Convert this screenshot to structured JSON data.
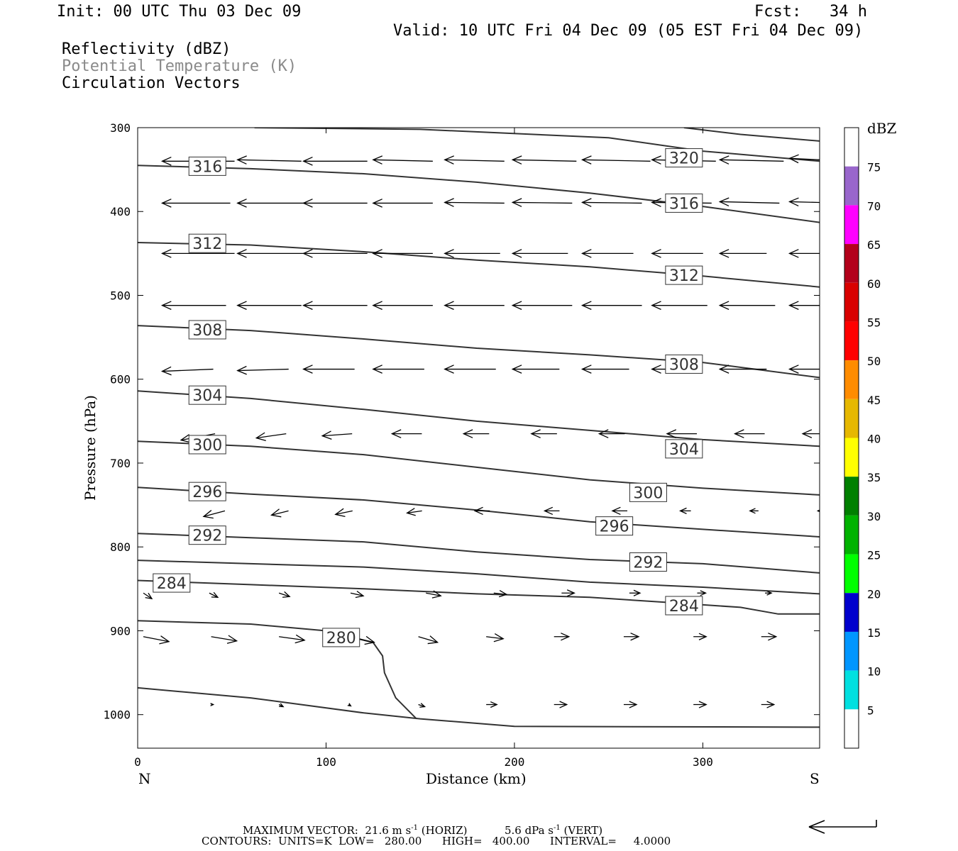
{
  "header": {
    "init": "Init: 00 UTC Thu 03 Dec 09",
    "fcst": "Fcst:   34 h",
    "valid": "Valid: 10 UTC Fri 04 Dec 09 (05 EST Fri 04 Dec 09)",
    "fields": [
      "Reflectivity (dBZ)",
      "Potential Temperature (K)",
      "Circulation Vectors"
    ]
  },
  "chart_data": {
    "type": "line",
    "xlabel": "Distance (km)",
    "ylabel": "Pressure (hPa)",
    "x_ticks": [
      0,
      100,
      200,
      300
    ],
    "y_ticks": [
      300,
      400,
      500,
      600,
      700,
      800,
      900,
      1000
    ],
    "xlim": [
      0,
      362
    ],
    "ylim": [
      300,
      1040
    ],
    "y_inverted": true,
    "left_end_label": "N",
    "right_end_label": "S",
    "contours": [
      {
        "level": 320,
        "labels": [
          [
            290,
            336
          ]
        ],
        "points": [
          [
            62,
            300
          ],
          [
            150,
            302
          ],
          [
            250,
            312
          ],
          [
            300,
            328
          ],
          [
            362,
            340
          ]
        ]
      },
      {
        "level": 320,
        "labels": [],
        "points": [
          [
            290,
            300
          ],
          [
            320,
            308
          ],
          [
            362,
            316
          ]
        ]
      },
      {
        "level": 316,
        "labels": [
          [
            37,
            346
          ],
          [
            290,
            390
          ]
        ],
        "points": [
          [
            0,
            345
          ],
          [
            60,
            349
          ],
          [
            120,
            355
          ],
          [
            180,
            365
          ],
          [
            240,
            378
          ],
          [
            300,
            394
          ],
          [
            362,
            413
          ]
        ]
      },
      {
        "level": 312,
        "labels": [
          [
            37,
            438
          ],
          [
            290,
            476
          ]
        ],
        "points": [
          [
            0,
            437
          ],
          [
            60,
            440
          ],
          [
            120,
            448
          ],
          [
            180,
            458
          ],
          [
            240,
            466
          ],
          [
            300,
            477
          ],
          [
            362,
            490
          ]
        ]
      },
      {
        "level": 308,
        "labels": [
          [
            37,
            541
          ],
          [
            290,
            582
          ]
        ],
        "points": [
          [
            0,
            536
          ],
          [
            60,
            542
          ],
          [
            120,
            552
          ],
          [
            180,
            563
          ],
          [
            240,
            571
          ],
          [
            300,
            580
          ],
          [
            362,
            598
          ]
        ]
      },
      {
        "level": 304,
        "labels": [
          [
            37,
            619
          ],
          [
            290,
            683
          ]
        ],
        "points": [
          [
            0,
            614
          ],
          [
            60,
            623
          ],
          [
            120,
            636
          ],
          [
            180,
            650
          ],
          [
            240,
            661
          ],
          [
            300,
            672
          ],
          [
            362,
            680
          ]
        ]
      },
      {
        "level": 300,
        "labels": [
          [
            37,
            678
          ],
          [
            271,
            735
          ]
        ],
        "points": [
          [
            0,
            674
          ],
          [
            60,
            680
          ],
          [
            120,
            690
          ],
          [
            180,
            705
          ],
          [
            240,
            720
          ],
          [
            300,
            730
          ],
          [
            362,
            738
          ]
        ]
      },
      {
        "level": 296,
        "labels": [
          [
            37,
            734
          ],
          [
            253,
            775
          ]
        ],
        "points": [
          [
            0,
            729
          ],
          [
            60,
            737
          ],
          [
            120,
            744
          ],
          [
            180,
            756
          ],
          [
            240,
            770
          ],
          [
            300,
            779
          ],
          [
            362,
            788
          ]
        ]
      },
      {
        "level": 292,
        "labels": [
          [
            37,
            786
          ],
          [
            271,
            818
          ]
        ],
        "points": [
          [
            0,
            784
          ],
          [
            60,
            789
          ],
          [
            120,
            794
          ],
          [
            180,
            806
          ],
          [
            240,
            815
          ],
          [
            300,
            820
          ],
          [
            362,
            831
          ]
        ]
      },
      {
        "level": 288,
        "labels": [],
        "points": [
          [
            0,
            816
          ],
          [
            60,
            820
          ],
          [
            120,
            824
          ],
          [
            180,
            832
          ],
          [
            240,
            842
          ],
          [
            300,
            848
          ],
          [
            362,
            856
          ]
        ]
      },
      {
        "level": 284,
        "labels": [
          [
            18,
            843
          ],
          [
            290,
            870
          ]
        ],
        "points": [
          [
            0,
            840
          ],
          [
            60,
            845
          ],
          [
            120,
            850
          ],
          [
            180,
            856
          ],
          [
            240,
            860
          ],
          [
            280,
            866
          ],
          [
            320,
            872
          ],
          [
            340,
            880
          ],
          [
            362,
            880
          ]
        ]
      },
      {
        "level": 280,
        "labels": [
          [
            108,
            908
          ]
        ],
        "points": [
          [
            0,
            888
          ],
          [
            60,
            892
          ],
          [
            100,
            900
          ],
          [
            125,
            914
          ],
          [
            130,
            930
          ],
          [
            131,
            950
          ],
          [
            137,
            980
          ],
          [
            148,
            1005
          ]
        ]
      },
      {
        "level": "ground",
        "labels": [],
        "points": [
          [
            0,
            968
          ],
          [
            60,
            980
          ],
          [
            120,
            998
          ],
          [
            150,
            1005
          ],
          [
            200,
            1014
          ],
          [
            362,
            1015
          ]
        ]
      }
    ],
    "vector_rows": [
      {
        "p": 340,
        "arrows": [
          [
            10,
            -34,
            0
          ],
          [
            50,
            -30,
            -2
          ],
          [
            85,
            -30,
            0
          ],
          [
            122,
            -28,
            -2
          ],
          [
            160,
            -28,
            -2
          ],
          [
            196,
            -30,
            -2
          ],
          [
            233,
            -32,
            -2
          ],
          [
            270,
            -30,
            -2
          ],
          [
            306,
            -30,
            -2
          ],
          [
            343,
            -28,
            -4
          ]
        ]
      },
      {
        "p": 390,
        "arrows": [
          [
            10,
            -32,
            0
          ],
          [
            50,
            -32,
            0
          ],
          [
            85,
            -30,
            0
          ],
          [
            122,
            -28,
            0
          ],
          [
            160,
            -28,
            -1
          ],
          [
            196,
            -28,
            -1
          ],
          [
            233,
            -28,
            -1
          ],
          [
            270,
            -28,
            -1
          ],
          [
            306,
            -28,
            -2
          ],
          [
            343,
            -26,
            -2
          ]
        ]
      },
      {
        "p": 450,
        "arrows": [
          [
            10,
            -34,
            0
          ],
          [
            50,
            -32,
            0
          ],
          [
            85,
            -30,
            0
          ],
          [
            122,
            -28,
            0
          ],
          [
            160,
            -26,
            0
          ],
          [
            196,
            -26,
            0
          ],
          [
            233,
            -24,
            0
          ],
          [
            270,
            -24,
            0
          ],
          [
            306,
            -22,
            0
          ],
          [
            343,
            -22,
            0
          ]
        ]
      },
      {
        "p": 512,
        "arrows": [
          [
            10,
            -30,
            0
          ],
          [
            50,
            -30,
            0
          ],
          [
            85,
            -30,
            0
          ],
          [
            122,
            -28,
            0
          ],
          [
            160,
            -28,
            0
          ],
          [
            196,
            -28,
            0
          ],
          [
            233,
            -28,
            0
          ],
          [
            270,
            -26,
            0
          ],
          [
            306,
            -26,
            0
          ],
          [
            343,
            -24,
            0
          ]
        ]
      },
      {
        "p": 588,
        "arrows": [
          [
            10,
            -24,
            3
          ],
          [
            50,
            -24,
            2
          ],
          [
            85,
            -24,
            0
          ],
          [
            122,
            -24,
            0
          ],
          [
            160,
            -24,
            0
          ],
          [
            196,
            -22,
            0
          ],
          [
            233,
            -22,
            0
          ],
          [
            270,
            -22,
            0
          ],
          [
            306,
            -22,
            0
          ],
          [
            343,
            -22,
            0
          ]
        ]
      },
      {
        "p": 665,
        "arrows": [
          [
            20,
            -16,
            9
          ],
          [
            60,
            -14,
            6
          ],
          [
            95,
            -14,
            3
          ],
          [
            132,
            -14,
            0
          ],
          [
            170,
            -12,
            0
          ],
          [
            206,
            -12,
            0
          ],
          [
            242,
            -12,
            0
          ],
          [
            278,
            -14,
            0
          ],
          [
            314,
            -14,
            0
          ],
          [
            350,
            -14,
            0
          ]
        ]
      },
      {
        "p": 757,
        "arrows": [
          [
            32,
            -10,
            8
          ],
          [
            68,
            -8,
            6
          ],
          [
            102,
            -8,
            5
          ],
          [
            140,
            -7,
            3
          ],
          [
            176,
            -7,
            0
          ],
          [
            213,
            -7,
            0
          ],
          [
            249,
            -7,
            0
          ],
          [
            285,
            -5,
            0
          ],
          [
            322,
            -4,
            0
          ],
          [
            358,
            -3,
            0
          ]
        ]
      },
      {
        "p": 855,
        "arrows": [
          [
            0,
            4,
            8
          ],
          [
            35,
            4,
            6
          ],
          [
            72,
            5,
            5
          ],
          [
            110,
            6,
            4
          ],
          [
            150,
            7,
            4
          ],
          [
            186,
            6,
            2
          ],
          [
            222,
            6,
            0
          ],
          [
            258,
            5,
            0
          ],
          [
            294,
            4,
            0
          ],
          [
            330,
            3,
            0
          ]
        ]
      },
      {
        "p": 907,
        "arrows": [
          [
            0,
            12,
            7
          ],
          [
            36,
            12,
            6
          ],
          [
            72,
            12,
            5
          ],
          [
            109,
            12,
            8
          ],
          [
            146,
            9,
            8
          ],
          [
            182,
            8,
            3
          ],
          [
            218,
            7,
            0
          ],
          [
            255,
            7,
            0
          ],
          [
            292,
            6,
            0
          ],
          [
            328,
            7,
            0
          ]
        ]
      },
      {
        "p": 988,
        "arrows": [
          [
            0,
            0,
            0
          ],
          [
            36,
            1,
            0
          ],
          [
            72,
            2,
            3
          ],
          [
            109,
            1,
            2
          ],
          [
            146,
            3,
            3
          ],
          [
            182,
            5,
            0
          ],
          [
            218,
            6,
            0
          ],
          [
            255,
            6,
            0
          ],
          [
            292,
            6,
            0
          ],
          [
            328,
            6,
            0
          ]
        ]
      }
    ],
    "colorbar": {
      "title": "dBZ",
      "labels": [
        "75",
        "70",
        "65",
        "60",
        "55",
        "50",
        "45",
        "40",
        "35",
        "30",
        "25",
        "20",
        "15",
        "10",
        "5"
      ],
      "colors": [
        "#ffffff",
        "#9966cc",
        "#ff00ff",
        "#b3001b",
        "#d90000",
        "#ff0000",
        "#ff8c00",
        "#e6b800",
        "#ffff00",
        "#008000",
        "#00b300",
        "#00ff00",
        "#0000cd",
        "#0096ff",
        "#00e0e0",
        "#ffffff"
      ]
    }
  },
  "footer": {
    "max_vector_a": "MAXIMUM VECTOR:  21.6 m s",
    "max_vector_b": "(HORIZ)",
    "max_vector_c": "5.6 dPa s",
    "max_vector_d": "(VERT)",
    "sup": "-1",
    "contours": "CONTOURS:  UNITS=K  LOW=   280.00      HIGH=   400.00      INTERVAL=     4.0000"
  }
}
